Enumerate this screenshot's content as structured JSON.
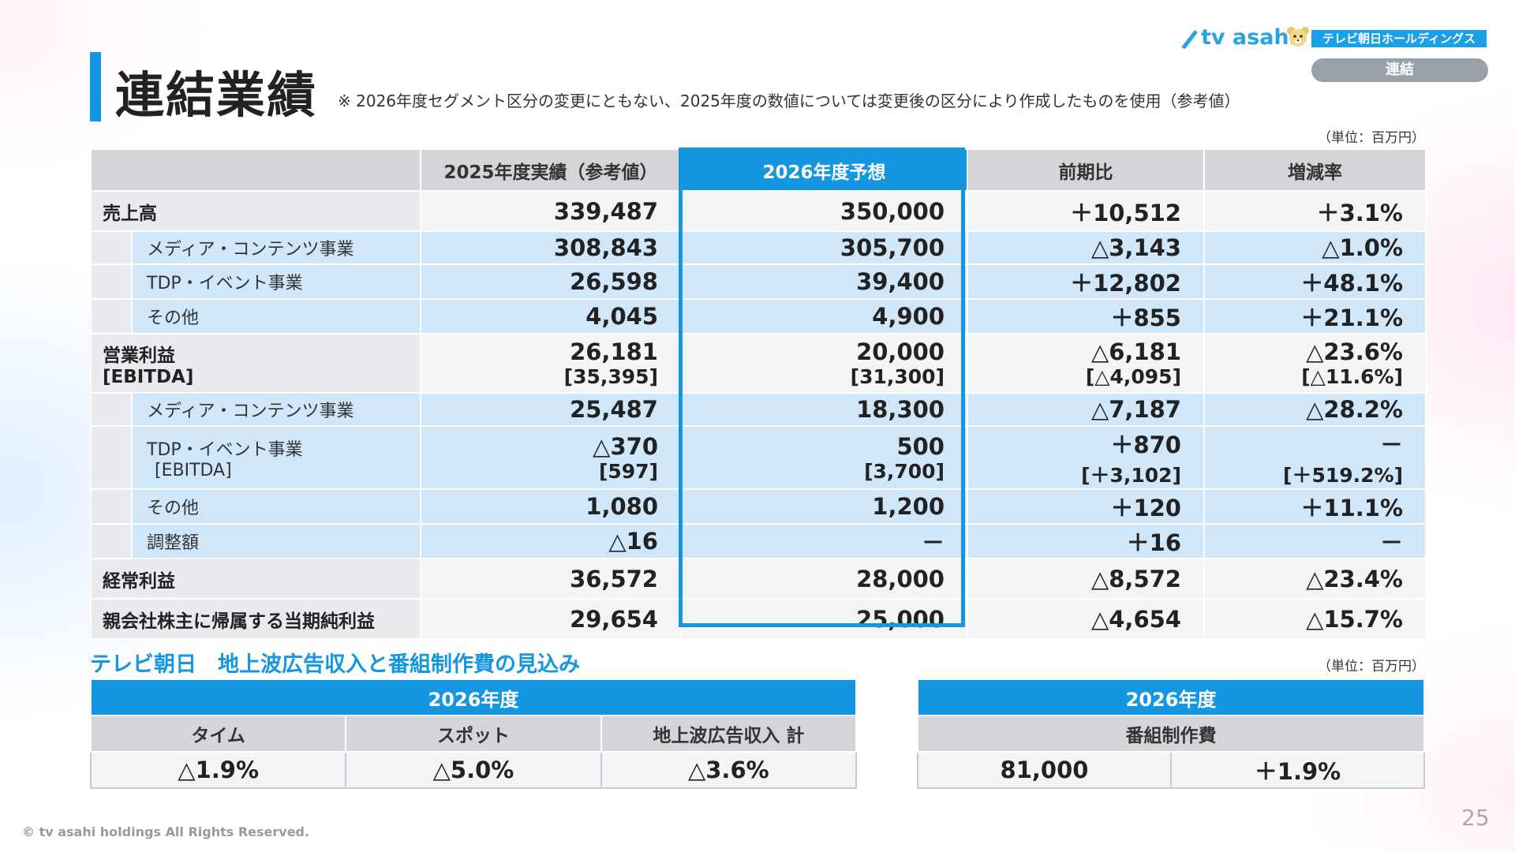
{
  "header": {
    "title": "連結業績",
    "note": "※ 2026年度セグメント区分の変更にともない、2025年度の数値については変更後の区分により作成したものを使用（参考値）",
    "logo_text": "tv asahi",
    "logo_badge": "テレビ朝日ホールディングス",
    "section_label": "連結"
  },
  "colors": {
    "accent": "#1596e0",
    "header_gray": "#d3d5d9",
    "sub_row": "#cfe7f8"
  },
  "main_table": {
    "unit": "（単位：百万円）",
    "columns": [
      "",
      "2025年度実績（参考値）",
      "2026年度予想",
      "前期比",
      "増減率"
    ],
    "rows": [
      {
        "label": "売上高",
        "label2": "",
        "v2025": "339,487",
        "v2025b": "",
        "v2026": "350,000",
        "v2026b": "",
        "diff": "＋10,512",
        "diffb": "",
        "rate": "＋3.1%",
        "rateb": ""
      },
      {
        "label": "メディア・コンテンツ事業",
        "label2": "",
        "v2025": "308,843",
        "v2025b": "",
        "v2026": "305,700",
        "v2026b": "",
        "diff": "△3,143",
        "diffb": "",
        "rate": "△1.0%",
        "rateb": ""
      },
      {
        "label": "TDP・イベント事業",
        "label2": "",
        "v2025": "26,598",
        "v2025b": "",
        "v2026": "39,400",
        "v2026b": "",
        "diff": "＋12,802",
        "diffb": "",
        "rate": "＋48.1%",
        "rateb": ""
      },
      {
        "label": "その他",
        "label2": "",
        "v2025": "4,045",
        "v2025b": "",
        "v2026": "4,900",
        "v2026b": "",
        "diff": "＋855",
        "diffb": "",
        "rate": "＋21.1%",
        "rateb": ""
      },
      {
        "label": "営業利益",
        "label2": "[EBITDA]",
        "v2025": "26,181",
        "v2025b": "[35,395]",
        "v2026": "20,000",
        "v2026b": "[31,300]",
        "diff": "△6,181",
        "diffb": "[△4,095]",
        "rate": "△23.6%",
        "rateb": "[△11.6%]"
      },
      {
        "label": "メディア・コンテンツ事業",
        "label2": "",
        "v2025": "25,487",
        "v2025b": "",
        "v2026": "18,300",
        "v2026b": "",
        "diff": "△7,187",
        "diffb": "",
        "rate": "△28.2%",
        "rateb": ""
      },
      {
        "label": "TDP・イベント事業",
        "label2": "[EBITDA]",
        "v2025": "△370",
        "v2025b": "[597]",
        "v2026": "500",
        "v2026b": "[3,700]",
        "diff": "＋870",
        "diffb": "[＋3,102]",
        "rate": "－",
        "rateb": "[＋519.2%]"
      },
      {
        "label": "その他",
        "label2": "",
        "v2025": "1,080",
        "v2025b": "",
        "v2026": "1,200",
        "v2026b": "",
        "diff": "＋120",
        "diffb": "",
        "rate": "＋11.1%",
        "rateb": ""
      },
      {
        "label": "調整額",
        "label2": "",
        "v2025": "△16",
        "v2025b": "",
        "v2026": "－",
        "v2026b": "",
        "diff": "＋16",
        "diffb": "",
        "rate": "－",
        "rateb": ""
      },
      {
        "label": "経常利益",
        "label2": "",
        "v2025": "36,572",
        "v2025b": "",
        "v2026": "28,000",
        "v2026b": "",
        "diff": "△8,572",
        "diffb": "",
        "rate": "△23.4%",
        "rateb": ""
      },
      {
        "label": "親会社株主に帰属する当期純利益",
        "label2": "",
        "v2025": "29,654",
        "v2025b": "",
        "v2026": "25,000",
        "v2026b": "",
        "diff": "△4,654",
        "diffb": "",
        "rate": "△15.7%",
        "rateb": ""
      }
    ]
  },
  "outlook": {
    "title": "テレビ朝日　地上波広告収入と番組制作費の見込み",
    "unit": "（単位：百万円）",
    "ad": {
      "year": "2026年度",
      "headers": [
        "タイム",
        "スポット",
        "地上波広告収入 計"
      ],
      "values": [
        "△1.9%",
        "△5.0%",
        "△3.6%"
      ]
    },
    "production": {
      "year": "2026年度",
      "header": "番組制作費",
      "amount": "81,000",
      "rate": "＋1.9%"
    }
  },
  "footer": {
    "copyright": "© tv asahi holdings All Rights Reserved.",
    "page_number": "25"
  }
}
